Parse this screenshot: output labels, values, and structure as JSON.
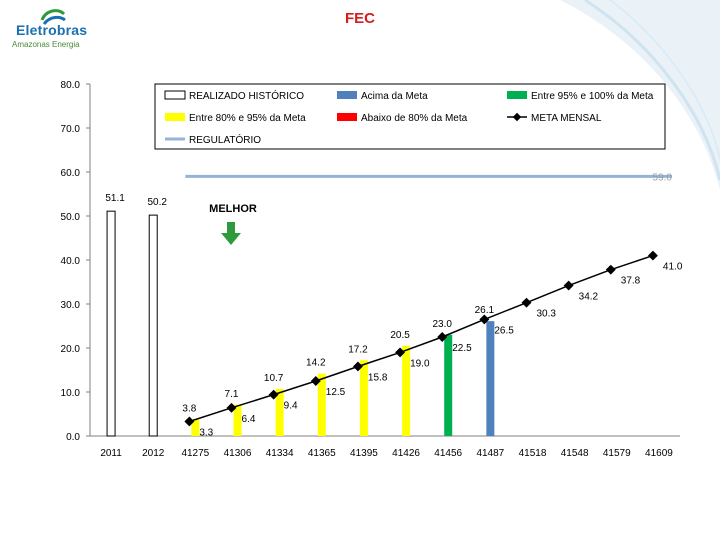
{
  "page": {
    "title": "FEC",
    "logo_name": "Eletrobras",
    "logo_sub": "Amazonas Energia"
  },
  "chart_data": {
    "type": "bar",
    "title": "",
    "xlabel": "",
    "ylabel": "",
    "ylim": [
      0,
      80
    ],
    "yticks": [
      "0.0",
      "10.0",
      "20.0",
      "30.0",
      "40.0",
      "50.0",
      "60.0",
      "70.0",
      "80.0"
    ],
    "grid": false,
    "legend_position": "top-right",
    "categories": [
      "2011",
      "2012",
      "41275",
      "41306",
      "41334",
      "41365",
      "41395",
      "41426",
      "41456",
      "41487",
      "41518",
      "41548",
      "41579",
      "41609"
    ],
    "realizado": [
      {
        "value": 51.1,
        "label": "51.1",
        "status": "historico"
      },
      {
        "value": 50.2,
        "label": "50.2",
        "status": "historico"
      },
      {
        "value": 3.8,
        "label": "3.8",
        "status": "entre80e95"
      },
      {
        "value": 7.1,
        "label": "7.1",
        "status": "entre80e95"
      },
      {
        "value": 10.7,
        "label": "10.7",
        "status": "entre80e95"
      },
      {
        "value": 14.2,
        "label": "14.2",
        "status": "entre80e95"
      },
      {
        "value": 17.2,
        "label": "17.2",
        "status": "entre80e95"
      },
      {
        "value": 20.5,
        "label": "20.5",
        "status": "entre80e95"
      },
      {
        "value": 23.0,
        "label": "23.0",
        "status": "entre95e100"
      },
      {
        "value": 26.1,
        "label": "26.1",
        "status": "acima"
      }
    ],
    "meta_mensal": {
      "name": "META MENSAL",
      "values": [
        null,
        null,
        3.3,
        6.4,
        9.4,
        12.5,
        15.8,
        19.0,
        22.5,
        26.5,
        30.3,
        34.2,
        37.8,
        41.0
      ],
      "labels": [
        "",
        "",
        "3.3",
        "6.4",
        "9.4",
        "12.5",
        "15.8",
        "19.0",
        "22.5",
        "26.5",
        "30.3",
        "34.2",
        "37.8",
        "41.0"
      ]
    },
    "regulatorio": {
      "name": "REGULATÓRIO",
      "value": 59.0,
      "label": "59.0"
    },
    "legend": [
      {
        "key": "historico",
        "label": "REALIZADO HISTÓRICO",
        "color": "#ffffff"
      },
      {
        "key": "acima",
        "label": "Acima da Meta",
        "color": "#4f81bd"
      },
      {
        "key": "entre95e100",
        "label": "Entre 95% e 100% da Meta",
        "color": "#00b050"
      },
      {
        "key": "entre80e95",
        "label": "Entre 80% e 95% da Meta",
        "color": "#ffff00"
      },
      {
        "key": "abaixo80",
        "label": "Abaixo de 80% da Meta",
        "color": "#ff0000"
      },
      {
        "key": "meta",
        "label": "META MENSAL",
        "color": "#000000"
      },
      {
        "key": "regulatorio",
        "label": "REGULATÓRIO",
        "color": "#95b3d7"
      }
    ],
    "annotation": {
      "text": "MELHOR",
      "arrow": "down",
      "color": "#2e9a3c"
    }
  }
}
